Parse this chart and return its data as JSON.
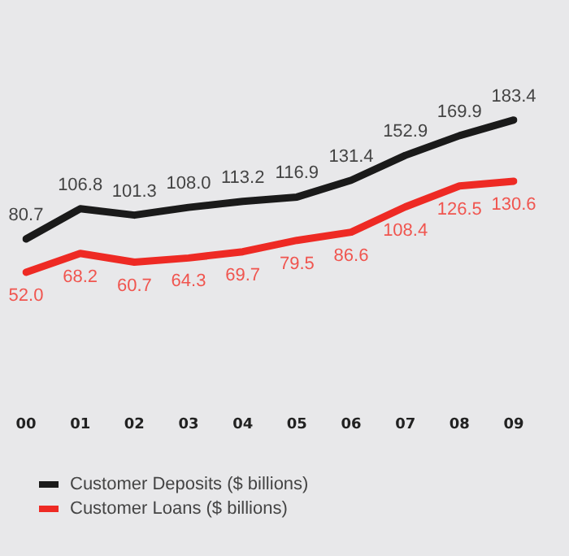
{
  "chart_data": {
    "type": "line",
    "categories": [
      "00",
      "01",
      "02",
      "03",
      "04",
      "05",
      "06",
      "07",
      "08",
      "09"
    ],
    "series": [
      {
        "name": "Customer Deposits ($ billions)",
        "color": "#1a1a1a",
        "values": [
          80.7,
          106.8,
          101.3,
          108.0,
          113.2,
          116.9,
          131.4,
          152.9,
          169.9,
          183.4
        ],
        "value_labels": [
          "80.7",
          "106.8",
          "101.3",
          "108.0",
          "113.2",
          "116.9",
          "131.4",
          "152.9",
          "169.9",
          "183.4"
        ]
      },
      {
        "name": "Customer Loans ($ billions)",
        "color": "#ee2a24",
        "values": [
          52.0,
          68.2,
          60.7,
          64.3,
          69.7,
          79.5,
          86.6,
          108.4,
          126.5,
          130.6
        ],
        "value_labels": [
          "52.0",
          "68.2",
          "60.7",
          "64.3",
          "69.7",
          "79.5",
          "86.6",
          "108.4",
          "126.5",
          "130.6"
        ]
      }
    ],
    "tick_labels": "x",
    "data_labels": true,
    "legend": "bottom",
    "grid": false,
    "marker": "none",
    "line_style": "solid"
  }
}
